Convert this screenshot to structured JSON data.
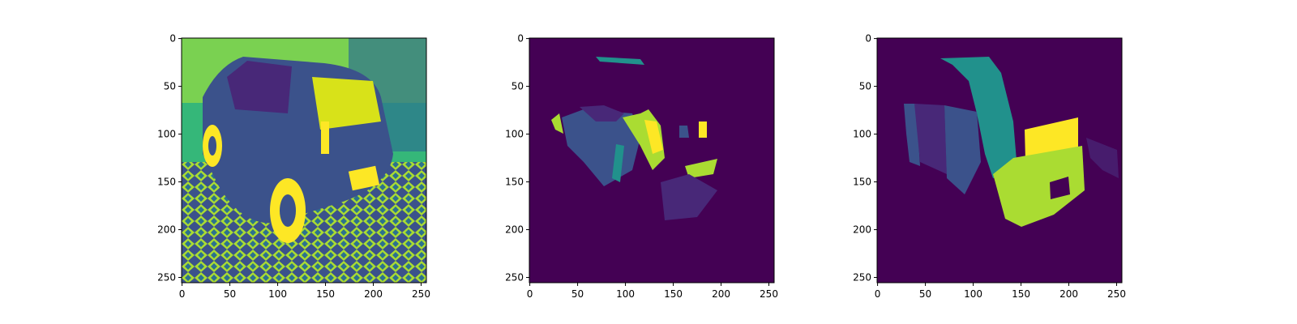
{
  "chart_data": [
    {
      "type": "heatmap",
      "title": "",
      "content": "grayscale car photo rendered with viridis colormap",
      "colormap": "viridis",
      "xlim": [
        0,
        255
      ],
      "ylim": [
        255,
        0
      ],
      "xticks": [
        0,
        50,
        100,
        150,
        200,
        250
      ],
      "yticks": [
        0,
        50,
        100,
        150,
        200,
        250
      ],
      "xlabel": "",
      "ylabel": ""
    },
    {
      "type": "heatmap",
      "title": "",
      "content": "predicted segmentation mask",
      "colormap": "viridis",
      "xlim": [
        0,
        255
      ],
      "ylim": [
        255,
        0
      ],
      "xticks": [
        0,
        50,
        100,
        150,
        200,
        250
      ],
      "yticks": [
        0,
        50,
        100,
        150,
        200,
        250
      ],
      "xlabel": "",
      "ylabel": ""
    },
    {
      "type": "heatmap",
      "title": "",
      "content": "ground truth segmentation mask",
      "colormap": "viridis",
      "xlim": [
        0,
        255
      ],
      "ylim": [
        255,
        0
      ],
      "xticks": [
        0,
        50,
        100,
        150,
        200,
        250
      ],
      "yticks": [
        0,
        50,
        100,
        150,
        200,
        250
      ],
      "xlabel": "",
      "ylabel": ""
    }
  ],
  "colors": {
    "viridis_dark": "#440154",
    "viridis_purple": "#482878",
    "viridis_blue": "#3b528b",
    "viridis_teal": "#21918c",
    "viridis_green": "#5ec962",
    "viridis_lime": "#aadc32",
    "viridis_yellow": "#fde725"
  }
}
